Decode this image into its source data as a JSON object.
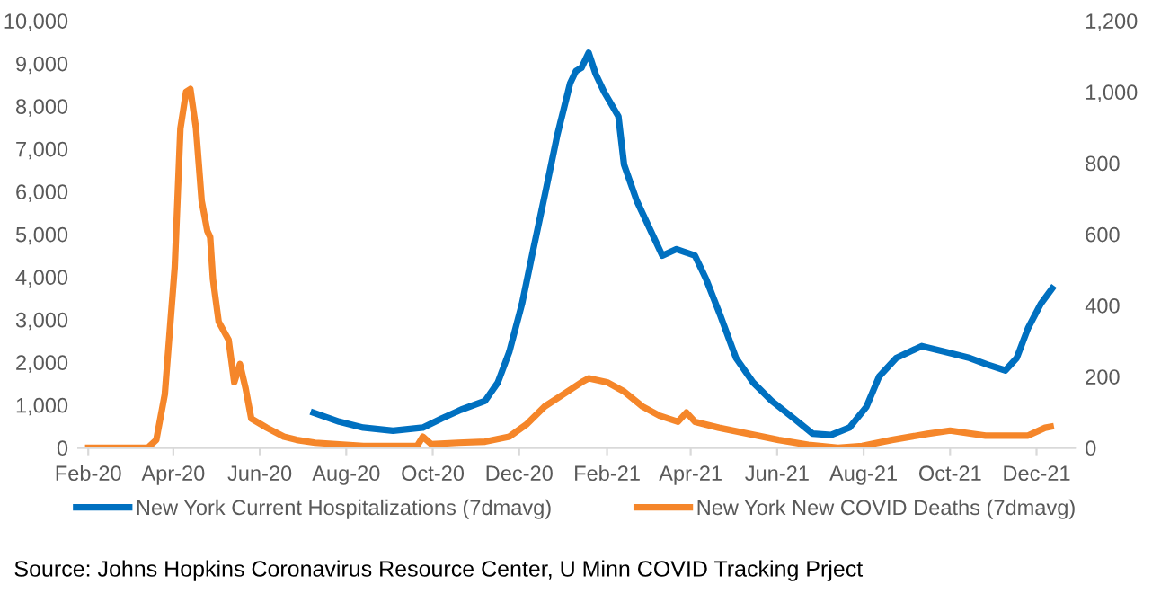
{
  "chart_data": {
    "type": "line",
    "xlim": [
      "2020-01-25",
      "2021-12-28"
    ],
    "xticks": [
      {
        "value": "2020-02-01",
        "label": "Feb-20"
      },
      {
        "value": "2020-04-01",
        "label": "Apr-20"
      },
      {
        "value": "2020-06-01",
        "label": "Jun-20"
      },
      {
        "value": "2020-08-01",
        "label": "Aug-20"
      },
      {
        "value": "2020-10-01",
        "label": "Oct-20"
      },
      {
        "value": "2020-12-01",
        "label": "Dec-20"
      },
      {
        "value": "2021-02-01",
        "label": "Feb-21"
      },
      {
        "value": "2021-04-01",
        "label": "Apr-21"
      },
      {
        "value": "2021-06-01",
        "label": "Jun-21"
      },
      {
        "value": "2021-08-01",
        "label": "Aug-21"
      },
      {
        "value": "2021-10-01",
        "label": "Oct-21"
      },
      {
        "value": "2021-12-01",
        "label": "Dec-21"
      }
    ],
    "ylim": [
      0,
      10000
    ],
    "yticks": [
      {
        "value": 0,
        "label": "0"
      },
      {
        "value": 1000,
        "label": "1,000"
      },
      {
        "value": 2000,
        "label": "2,000"
      },
      {
        "value": 3000,
        "label": "3,000"
      },
      {
        "value": 4000,
        "label": "4,000"
      },
      {
        "value": 5000,
        "label": "5,000"
      },
      {
        "value": 6000,
        "label": "6,000"
      },
      {
        "value": 7000,
        "label": "7,000"
      },
      {
        "value": 8000,
        "label": "8,000"
      },
      {
        "value": 9000,
        "label": "9,000"
      },
      {
        "value": 10000,
        "label": "10,000"
      }
    ],
    "y2lim": [
      0,
      1200
    ],
    "y2ticks": [
      {
        "value": 0,
        "label": "0"
      },
      {
        "value": 200,
        "label": "200"
      },
      {
        "value": 400,
        "label": "400"
      },
      {
        "value": 600,
        "label": "600"
      },
      {
        "value": 800,
        "label": "800"
      },
      {
        "value": 1000,
        "label": "1,000"
      },
      {
        "value": 1200,
        "label": "1,200"
      }
    ],
    "grid": false,
    "legend": "bottom",
    "marker": "none",
    "line_style": "solid",
    "annotations": [
      "Source: Johns Hopkins Coronavirus Resource Center, U Minn COVID Tracking Prject"
    ],
    "series": [
      {
        "name": "New York Current Hospitalizations (7dmavg)",
        "color": "#0070c0",
        "x": [
          "2020-07-09",
          "2020-07-27",
          "2020-08-13",
          "2020-09-03",
          "2020-09-24",
          "2020-10-07",
          "2020-10-21",
          "2020-11-07",
          "2020-11-16",
          "2020-11-24",
          "2020-12-03",
          "2020-12-11",
          "2020-12-20",
          "2020-12-28",
          "2021-01-06",
          "2021-01-10",
          "2021-01-14",
          "2021-01-19",
          "2021-01-24",
          "2021-01-30",
          "2021-02-09",
          "2021-02-13",
          "2021-02-22",
          "2021-03-02",
          "2021-03-12",
          "2021-03-22",
          "2021-04-04",
          "2021-04-12",
          "2021-04-22",
          "2021-05-03",
          "2021-05-15",
          "2021-05-28",
          "2021-06-13",
          "2021-06-26",
          "2021-07-09",
          "2021-07-22",
          "2021-08-03",
          "2021-08-12",
          "2021-08-24",
          "2021-09-11",
          "2021-09-28",
          "2021-10-15",
          "2021-10-27",
          "2021-11-09",
          "2021-11-17",
          "2021-11-25",
          "2021-12-04",
          "2021-12-12"
        ],
        "values": [
          820,
          610,
          470,
          400,
          470,
          680,
          890,
          1100,
          1530,
          2240,
          3370,
          4650,
          6060,
          7340,
          8540,
          8820,
          8900,
          9250,
          8750,
          8330,
          7760,
          6630,
          5780,
          5210,
          4500,
          4650,
          4500,
          3940,
          3090,
          2100,
          1530,
          1100,
          680,
          330,
          300,
          470,
          960,
          1670,
          2100,
          2380,
          2240,
          2100,
          1950,
          1810,
          2100,
          2800,
          3370,
          3730
        ]
      },
      {
        "name": "New York New COVID Deaths (7dmavg)",
        "color": "#f5862a",
        "axis": "y2",
        "x": [
          "2020-02-01",
          "2020-03-14",
          "2020-03-20",
          "2020-03-26",
          "2020-04-02",
          "2020-04-06",
          "2020-04-10",
          "2020-04-13",
          "2020-04-17",
          "2020-04-21",
          "2020-04-25",
          "2020-04-27",
          "2020-04-29",
          "2020-05-03",
          "2020-05-10",
          "2020-05-14",
          "2020-05-18",
          "2020-05-22",
          "2020-05-26",
          "2020-06-06",
          "2020-06-18",
          "2020-06-27",
          "2020-07-10",
          "2020-08-13",
          "2020-09-03",
          "2020-09-20",
          "2020-09-24",
          "2020-09-30",
          "2020-10-19",
          "2020-11-07",
          "2020-11-24",
          "2020-12-06",
          "2020-12-19",
          "2021-01-01",
          "2021-01-14",
          "2021-01-19",
          "2021-02-01",
          "2021-02-13",
          "2021-02-26",
          "2021-03-10",
          "2021-03-23",
          "2021-03-29",
          "2021-04-04",
          "2021-04-21",
          "2021-05-12",
          "2021-06-02",
          "2021-06-23",
          "2021-07-14",
          "2021-07-31",
          "2021-08-21",
          "2021-09-15",
          "2021-10-01",
          "2021-10-26",
          "2021-11-25",
          "2021-12-07",
          "2021-12-11"
        ],
        "values": [
          0,
          0,
          22,
          150,
          507,
          897,
          1000,
          1008,
          897,
          694,
          609,
          592,
          473,
          354,
          303,
          184,
          235,
          167,
          82,
          56,
          31,
          22,
          14,
          5,
          5,
          5,
          31,
          10,
          14,
          17,
          31,
          65,
          116,
          150,
          184,
          195,
          184,
          158,
          116,
          90,
          73,
          99,
          73,
          56,
          39,
          22,
          8,
          0,
          5,
          22,
          39,
          48,
          34,
          34,
          56,
          59
        ]
      }
    ]
  }
}
